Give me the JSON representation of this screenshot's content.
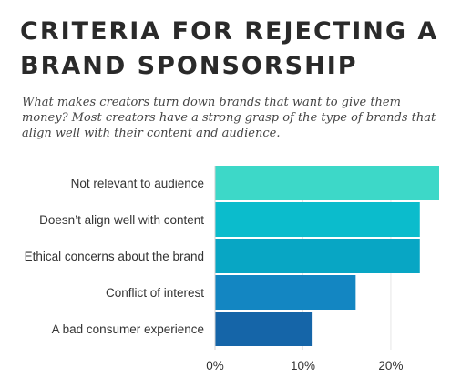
{
  "header": {
    "title": "CRITERIA FOR REJECTING A BRAND SPONSORSHIP",
    "subtitle": "What makes creators turn down brands that want to give them money? Most creators have a strong grasp of the type of brands that align well with their content and audience."
  },
  "chart_data": {
    "type": "bar",
    "orientation": "horizontal",
    "categories": [
      "Not relevant to audience",
      "Doesn’t align well with content",
      "Ethical concerns about the brand",
      "Conflict of interest",
      "A bad consumer experience"
    ],
    "values": [
      25.5,
      23.3,
      23.3,
      16.0,
      11.0
    ],
    "colors": [
      "#3dd8c8",
      "#0bbccc",
      "#08a6c4",
      "#1386c2",
      "#1565a8"
    ],
    "xlim": [
      0,
      25.5
    ],
    "xticks": [
      0,
      10,
      20
    ],
    "xtick_labels": [
      "0%",
      "10%",
      "20%"
    ],
    "grid": true
  }
}
